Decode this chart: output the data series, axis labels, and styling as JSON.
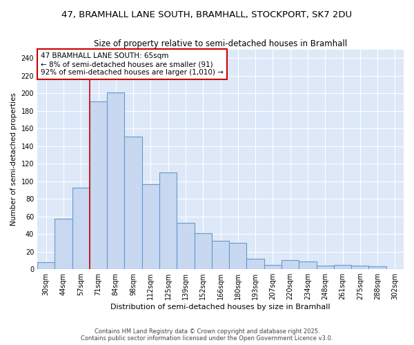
{
  "title_line1": "47, BRAMHALL LANE SOUTH, BRAMHALL, STOCKPORT, SK7 2DU",
  "title_line2": "Size of property relative to semi-detached houses in Bramhall",
  "xlabel": "Distribution of semi-detached houses by size in Bramhall",
  "ylabel": "Number of semi-detached properties",
  "categories": [
    "30sqm",
    "44sqm",
    "57sqm",
    "71sqm",
    "84sqm",
    "98sqm",
    "112sqm",
    "125sqm",
    "139sqm",
    "152sqm",
    "166sqm",
    "180sqm",
    "193sqm",
    "207sqm",
    "220sqm",
    "234sqm",
    "248sqm",
    "261sqm",
    "275sqm",
    "288sqm",
    "302sqm"
  ],
  "values": [
    8,
    57,
    93,
    191,
    201,
    151,
    97,
    110,
    53,
    41,
    32,
    30,
    12,
    5,
    10,
    9,
    4,
    5,
    4,
    3,
    0
  ],
  "bar_color": "#c8d8f0",
  "bar_edge_color": "#6699cc",
  "annotation_text": "47 BRAMHALL LANE SOUTH: 65sqm\n← 8% of semi-detached houses are smaller (91)\n92% of semi-detached houses are larger (1,010) →",
  "annotation_box_color": "#ffffff",
  "annotation_box_edge": "#cc0000",
  "red_line_x": 2.5,
  "background_color": "#ffffff",
  "plot_bg_color": "#dde8f8",
  "grid_color": "#ffffff",
  "ylim": [
    0,
    250
  ],
  "yticks": [
    0,
    20,
    40,
    60,
    80,
    100,
    120,
    140,
    160,
    180,
    200,
    220,
    240
  ],
  "footer_line1": "Contains HM Land Registry data © Crown copyright and database right 2025.",
  "footer_line2": "Contains public sector information licensed under the Open Government Licence v3.0."
}
